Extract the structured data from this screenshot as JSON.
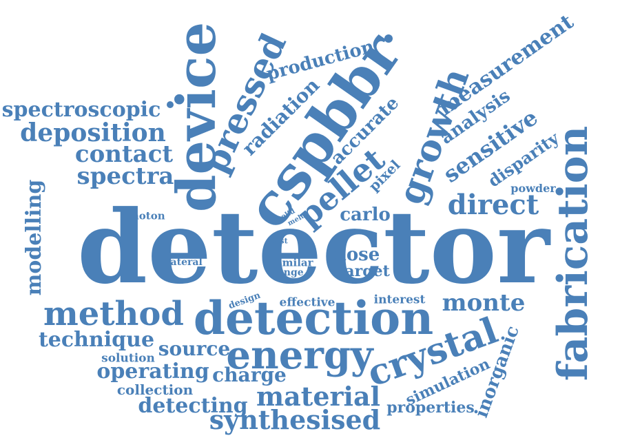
{
  "cloud": {
    "color": "#4a80b8",
    "words": {
      "detector": "detector",
      "detection": "detection",
      "csp": "cspbbr",
      "device": "device",
      "fabrication": "fabrication",
      "growth": "growth",
      "pressed": "pressed",
      "energy": "energy",
      "crystal": "crystal",
      "method": "method",
      "pellet": "pellet",
      "direct": "direct",
      "material": "material",
      "synthesised": "synthesised",
      "deposition": "deposition",
      "spectroscopic": "spectroscopic",
      "contact": "contact",
      "spectra": "spectra",
      "production": "production",
      "measurement": "measurement",
      "sensitive": "sensitive",
      "analysis": "analysis",
      "radiation": "radiation",
      "accurate": "accurate",
      "disparity": "disparity",
      "modelling": "modelling",
      "technique": "technique",
      "source": "source",
      "operating": "operating",
      "charge": "charge",
      "detecting": "detecting",
      "collection": "collection",
      "solution": "solution",
      "monte": "monte",
      "inorganic": "inorganic",
      "simulation": "simulation",
      "properties": "properties",
      "carlo": "carlo",
      "dose": "dose",
      "target": "target",
      "pixel": "pixel",
      "powder": "powder",
      "photon": "photon",
      "solid": "solid",
      "melt": "melt",
      "cost": "cost",
      "lateral": "lateral",
      "similar": "similar",
      "range": "range",
      "design": "design",
      "effective": "effective",
      "interest": "interest"
    }
  }
}
